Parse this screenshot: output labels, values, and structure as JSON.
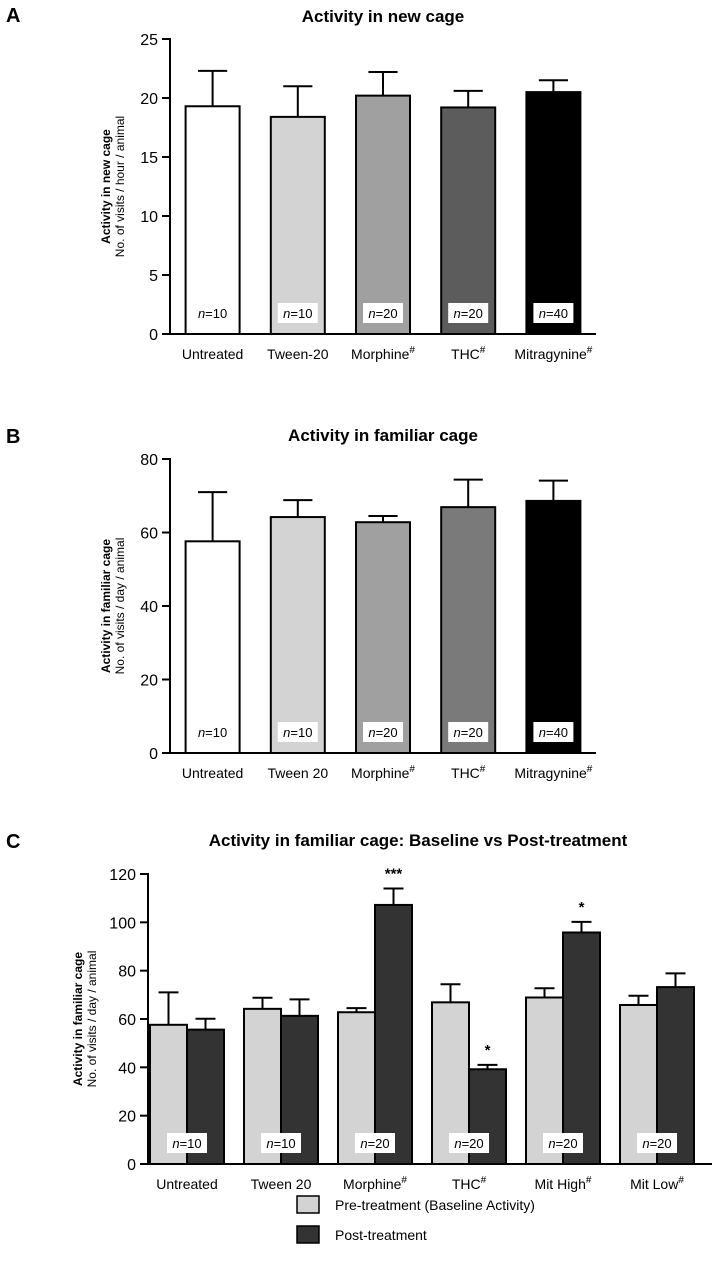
{
  "chart_data": [
    {
      "panel_label": "A",
      "type": "bar",
      "title": "Activity in new cage",
      "ylabel_bold": "Activity in new cage",
      "ylabel": "No. of visits / hour / animal",
      "ylim": [
        0,
        25
      ],
      "yticks": [
        0,
        5,
        10,
        15,
        20,
        25
      ],
      "categories": [
        {
          "label": "Untreated",
          "sup": ""
        },
        {
          "label": "Tween-20",
          "sup": ""
        },
        {
          "label": "Morphine",
          "sup": "#"
        },
        {
          "label": "THC",
          "sup": "#"
        },
        {
          "label": "Mitragynine",
          "sup": "#"
        }
      ],
      "values": [
        19.3,
        18.4,
        20.2,
        19.2,
        20.5
      ],
      "errors": [
        3.0,
        2.6,
        2.0,
        1.4,
        1.0
      ],
      "n_labels": [
        {
          "prefix": "n",
          "text": "=10"
        },
        {
          "prefix": "n",
          "text": "=10"
        },
        {
          "prefix": "n",
          "text": "=20"
        },
        {
          "prefix": "n",
          "text": "=20"
        },
        {
          "prefix": "n",
          "text": "=40"
        }
      ],
      "colors": [
        "#ffffff",
        "#d3d3d3",
        "#a0a0a0",
        "#5c5c5c",
        "#000000"
      ]
    },
    {
      "panel_label": "B",
      "type": "bar",
      "title": "Activity in familiar cage",
      "ylabel_bold": "Activity in familiar cage",
      "ylabel": "No. of visits / day / animal",
      "ylim": [
        0,
        80
      ],
      "yticks": [
        0,
        20,
        40,
        60,
        80
      ],
      "categories": [
        {
          "label": "Untreated",
          "sup": ""
        },
        {
          "label": "Tween 20",
          "sup": ""
        },
        {
          "label": "Morphine",
          "sup": "#"
        },
        {
          "label": "THC",
          "sup": "#"
        },
        {
          "label": "Mitragynine",
          "sup": "#"
        }
      ],
      "values": [
        57.6,
        64.2,
        62.8,
        66.9,
        68.6
      ],
      "errors": [
        13.4,
        4.6,
        1.7,
        7.5,
        5.5
      ],
      "n_labels": [
        {
          "prefix": "n",
          "text": "=10"
        },
        {
          "prefix": "n",
          "text": "=10"
        },
        {
          "prefix": "n",
          "text": "=20"
        },
        {
          "prefix": "n",
          "text": "=20"
        },
        {
          "prefix": "n",
          "text": "=40"
        }
      ],
      "colors": [
        "#ffffff",
        "#d3d3d3",
        "#a0a0a0",
        "#7a7a7a",
        "#000000"
      ]
    },
    {
      "panel_label": "C",
      "type": "bar",
      "title": "Activity in familiar cage: Baseline vs Post-treatment",
      "ylabel_bold": "Activity in familiar cage",
      "ylabel": "No. of visits / day / animal",
      "ylim": [
        0,
        120
      ],
      "yticks": [
        0,
        20,
        40,
        60,
        80,
        100,
        120
      ],
      "categories": [
        {
          "label": "Untreated",
          "sup": ""
        },
        {
          "label": "Tween 20",
          "sup": ""
        },
        {
          "label": "Morphine",
          "sup": "#"
        },
        {
          "label": "THC",
          "sup": "#"
        },
        {
          "label": "Mit High",
          "sup": "#"
        },
        {
          "label": "Mit Low",
          "sup": "#"
        }
      ],
      "series": [
        {
          "name": "Pre-treatment (Baseline Activity)",
          "color": "#d3d3d3",
          "values": [
            57.6,
            64.2,
            62.8,
            66.9,
            68.9,
            65.8
          ],
          "errors": [
            13.4,
            4.6,
            1.7,
            7.5,
            3.8,
            3.8
          ],
          "significance": [
            "",
            "",
            "",
            "",
            "",
            ""
          ]
        },
        {
          "name": "Post-treatment",
          "color": "#333333",
          "values": [
            55.6,
            61.3,
            107.2,
            39.2,
            95.8,
            73.2
          ],
          "errors": [
            4.5,
            6.8,
            6.8,
            1.8,
            4.4,
            5.7
          ],
          "significance": [
            "",
            "",
            "***",
            "*",
            "*",
            ""
          ]
        }
      ],
      "n_labels": [
        {
          "prefix": "n",
          "text": "=10"
        },
        {
          "prefix": "n",
          "text": "=10"
        },
        {
          "prefix": "n",
          "text": "=20"
        },
        {
          "prefix": "n",
          "text": "=20"
        },
        {
          "prefix": "n",
          "text": "=20"
        },
        {
          "prefix": "n",
          "text": "=20"
        }
      ],
      "legend_position": "bottom"
    }
  ]
}
